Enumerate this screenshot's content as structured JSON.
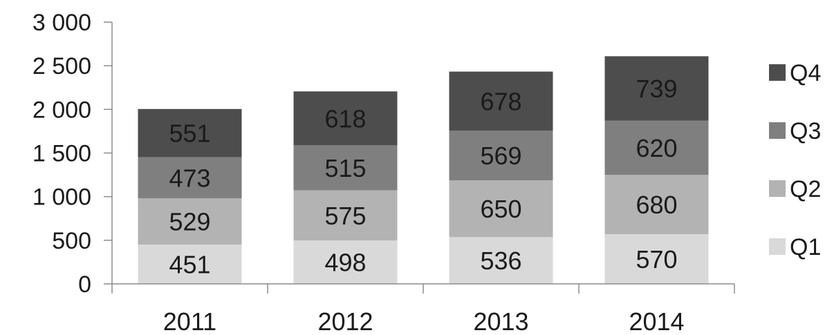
{
  "chart_data": {
    "type": "bar",
    "stacked": true,
    "categories": [
      "2011",
      "2012",
      "2013",
      "2014"
    ],
    "series": [
      {
        "name": "Q1",
        "values": [
          451,
          498,
          536,
          570
        ],
        "color": "#d9d9d9",
        "label_color": "#1a1a1a"
      },
      {
        "name": "Q2",
        "values": [
          529,
          575,
          650,
          680
        ],
        "color": "#b3b3b3",
        "label_color": "#1a1a1a"
      },
      {
        "name": "Q3",
        "values": [
          473,
          515,
          569,
          620
        ],
        "color": "#7f7f7f",
        "label_color": "#1a1a1a"
      },
      {
        "name": "Q4",
        "values": [
          551,
          618,
          678,
          739
        ],
        "color": "#4d4d4d",
        "label_color": "#1a1a1a"
      }
    ],
    "y_ticks": [
      {
        "value": 0,
        "label": "0"
      },
      {
        "value": 500,
        "label": "500"
      },
      {
        "value": 1000,
        "label": "1 000"
      },
      {
        "value": 1500,
        "label": "1 500"
      },
      {
        "value": 2000,
        "label": "2 000"
      },
      {
        "value": 2500,
        "label": "2 500"
      },
      {
        "value": 3000,
        "label": "3 000"
      }
    ],
    "ylim": [
      0,
      3000
    ],
    "title": "",
    "xlabel": "",
    "ylabel": "",
    "grid": false,
    "legend_position": "right"
  }
}
